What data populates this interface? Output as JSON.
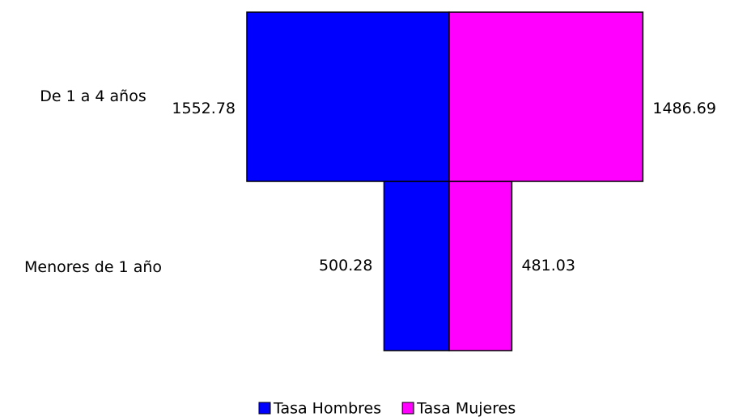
{
  "chart_data": {
    "type": "pyramid",
    "categories": [
      "Menores de 1 año",
      "De 1 a 4 años"
    ],
    "series": [
      {
        "name": "Tasa Hombres",
        "color": "#0000ff",
        "values": [
          500.28,
          1552.78
        ]
      },
      {
        "name": "Tasa Mujeres",
        "color": "#ff00ff",
        "values": [
          481.03,
          1486.69
        ]
      }
    ],
    "legend": "bottom"
  }
}
